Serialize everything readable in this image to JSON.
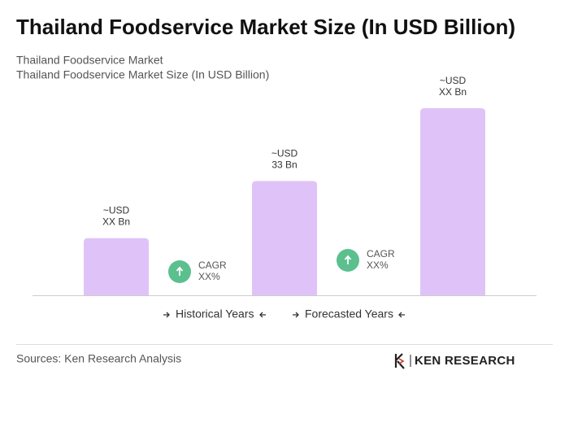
{
  "chart_data": {
    "type": "bar",
    "title": "Thailand Foodservice Market Size (In USD Billion)",
    "subtitle": [
      "Thailand Foodservice Market",
      "Thailand Foodservice Market Size (In USD Billion)"
    ],
    "categories": [
      null,
      null,
      null
    ],
    "values": [
      16.5,
      33,
      54
    ],
    "value_labels": [
      [
        "~USD",
        "XX Bn"
      ],
      [
        "~USD",
        "33 Bn"
      ],
      [
        "~USD",
        "XX Bn"
      ]
    ],
    "color": "#dfc3f8",
    "annotations": [
      {
        "lines": [
          "CAGR",
          "XX%"
        ],
        "color": "#5cbf8e"
      },
      {
        "lines": [
          "CAGR",
          "XX%"
        ],
        "color": "#5cbf8e"
      }
    ],
    "legend": [
      "Historical Years",
      "Forecasted Years"
    ],
    "source": "Sources: Ken Research Analysis",
    "brand": "KEN RESEARCH"
  }
}
